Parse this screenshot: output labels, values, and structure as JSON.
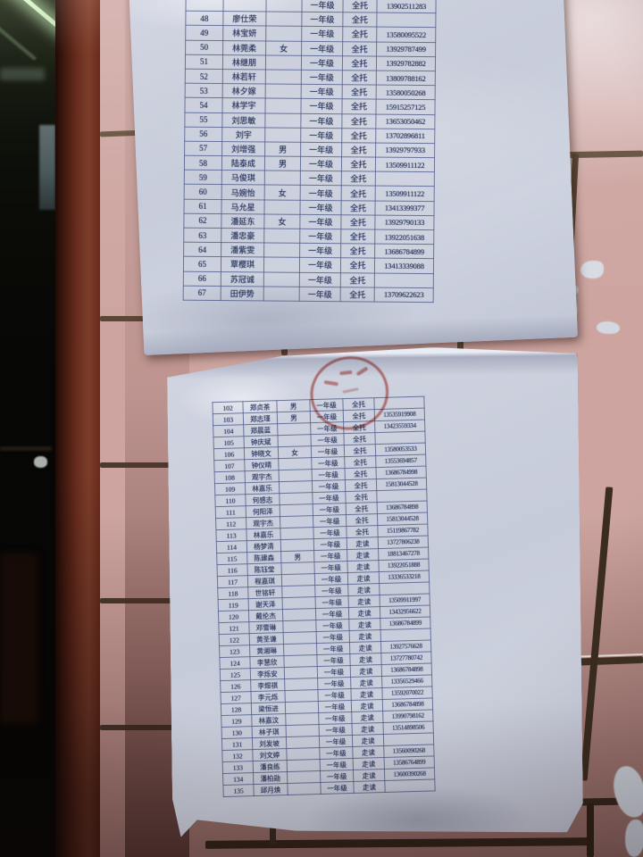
{
  "papers": [
    {
      "name": "roster-sheet-1",
      "columns": [
        "no",
        "name",
        "gender",
        "grade",
        "boarding",
        "phone"
      ],
      "rows": [
        [
          "",
          "",
          "",
          "一年级",
          "全托",
          "13902511283"
        ],
        [
          "48",
          "廖仕荣",
          "",
          "一年级",
          "全托",
          ""
        ],
        [
          "49",
          "林宝妍",
          "",
          "一年级",
          "全托",
          "13580095522"
        ],
        [
          "50",
          "林莞柔",
          "女",
          "一年级",
          "全托",
          "13929787499"
        ],
        [
          "51",
          "林继朋",
          "",
          "一年级",
          "全托",
          "13929782882"
        ],
        [
          "52",
          "林若轩",
          "",
          "一年级",
          "全托",
          "13809788162"
        ],
        [
          "53",
          "林夕嫁",
          "",
          "一年级",
          "全托",
          "13580050268"
        ],
        [
          "54",
          "林学宇",
          "",
          "一年级",
          "全托",
          "15915257125"
        ],
        [
          "55",
          "刘思敏",
          "",
          "一年级",
          "全托",
          "13653050462"
        ],
        [
          "56",
          "刘宇",
          "",
          "一年级",
          "全托",
          "13702896811"
        ],
        [
          "57",
          "刘增强",
          "男",
          "一年级",
          "全托",
          "13929797933"
        ],
        [
          "58",
          "陆泰成",
          "男",
          "一年级",
          "全托",
          "13509911122"
        ],
        [
          "59",
          "马俊琪",
          "",
          "一年级",
          "全托",
          ""
        ],
        [
          "60",
          "马婉怡",
          "女",
          "一年级",
          "全托",
          "13509911122"
        ],
        [
          "61",
          "马允星",
          "",
          "一年级",
          "全托",
          "13413399377"
        ],
        [
          "62",
          "潘延东",
          "女",
          "一年级",
          "全托",
          "13929790133"
        ],
        [
          "63",
          "潘忠豪",
          "",
          "一年级",
          "全托",
          "13922051638"
        ],
        [
          "64",
          "潘紫雯",
          "",
          "一年级",
          "全托",
          "13686784899"
        ],
        [
          "65",
          "覃樱琪",
          "",
          "一年级",
          "全托",
          "13413339088"
        ],
        [
          "66",
          "苏冠诚",
          "",
          "一年级",
          "全托",
          ""
        ],
        [
          "67",
          "田伊势",
          "",
          "一年级",
          "全托",
          "13709622623"
        ]
      ]
    },
    {
      "name": "roster-sheet-2",
      "columns": [
        "no",
        "name",
        "gender",
        "grade",
        "boarding",
        "phone"
      ],
      "rows": [
        [
          "102",
          "郑贞茶",
          "男",
          "一年级",
          "全托",
          ""
        ],
        [
          "103",
          "郑志瑾",
          "男",
          "一年级",
          "全托",
          "13535919908"
        ],
        [
          "104",
          "郑晨蓝",
          "",
          "一年级",
          "全托",
          "13423559334"
        ],
        [
          "105",
          "钟庆斌",
          "",
          "一年级",
          "全托",
          ""
        ],
        [
          "106",
          "钟晓文",
          "女",
          "一年级",
          "全托",
          "13580053533"
        ],
        [
          "107",
          "钟仪晴",
          "",
          "一年级",
          "全托",
          "13553694857"
        ],
        [
          "108",
          "观宇杰",
          "",
          "一年级",
          "全托",
          "13686784998"
        ],
        [
          "109",
          "林嘉乐",
          "",
          "一年级",
          "全托",
          "15813044528"
        ],
        [
          "110",
          "何感志",
          "",
          "一年级",
          "全托",
          ""
        ],
        [
          "111",
          "何阳泽",
          "",
          "一年级",
          "全托",
          "13686784898"
        ],
        [
          "112",
          "观宇杰",
          "",
          "一年级",
          "全托",
          "15813044528"
        ],
        [
          "113",
          "林嘉乐",
          "",
          "一年级",
          "全托",
          "15119867782"
        ],
        [
          "114",
          "杨梦清",
          "",
          "一年级",
          "走读",
          "13727806238"
        ],
        [
          "115",
          "陈建森",
          "男",
          "一年级",
          "走读",
          "18813467278"
        ],
        [
          "116",
          "陈钰莹",
          "",
          "一年级",
          "走读",
          "13922051888"
        ],
        [
          "117",
          "程嘉琪",
          "",
          "一年级",
          "走读",
          "13336533218"
        ],
        [
          "118",
          "世铭轩",
          "",
          "一年级",
          "走读",
          ""
        ],
        [
          "119",
          "谢天泽",
          "",
          "一年级",
          "走读",
          "13509911997"
        ],
        [
          "120",
          "戴伦杰",
          "",
          "一年级",
          "走读",
          "13432956622"
        ],
        [
          "121",
          "邓雪琳",
          "",
          "一年级",
          "走读",
          "13686784899"
        ],
        [
          "122",
          "黄圣谦",
          "",
          "一年级",
          "走读",
          ""
        ],
        [
          "123",
          "黄湘琳",
          "",
          "一年级",
          "走读",
          "13927576628"
        ],
        [
          "124",
          "李慧欣",
          "",
          "一年级",
          "走读",
          "13727780742"
        ],
        [
          "125",
          "李烁安",
          "",
          "一年级",
          "走读",
          "13686784898"
        ],
        [
          "126",
          "李煜祺",
          "",
          "一年级",
          "走读",
          "13356529466"
        ],
        [
          "127",
          "李元烁",
          "",
          "一年级",
          "走读",
          "13592070022"
        ],
        [
          "128",
          "梁恒进",
          "",
          "一年级",
          "走读",
          "13686784898"
        ],
        [
          "129",
          "林嘉汶",
          "",
          "一年级",
          "走读",
          "13990798162"
        ],
        [
          "130",
          "林子琪",
          "",
          "一年级",
          "走读",
          "13514898506"
        ],
        [
          "131",
          "刘发坡",
          "",
          "一年级",
          "走读",
          ""
        ],
        [
          "132",
          "刘文婷",
          "",
          "一年级",
          "走读",
          "13560090268"
        ],
        [
          "133",
          "潘良练",
          "",
          "一年级",
          "走读",
          "13586764899"
        ],
        [
          "134",
          "潘柏勋",
          "",
          "一年级",
          "走读",
          "13600390268"
        ],
        [
          "135",
          "邱月焕",
          "",
          "一年级",
          "走读",
          ""
        ]
      ]
    }
  ],
  "colors": {
    "tile_pink": "#cda49f",
    "grout_brown": "#4e3d2c",
    "paper_blue_white": "#ccd1dd",
    "table_border_blue": "#525e8a",
    "ink_navy": "#2e3a60",
    "stamp_red": "#ba3a30",
    "door_frame_brown": "#6b2e1f"
  }
}
